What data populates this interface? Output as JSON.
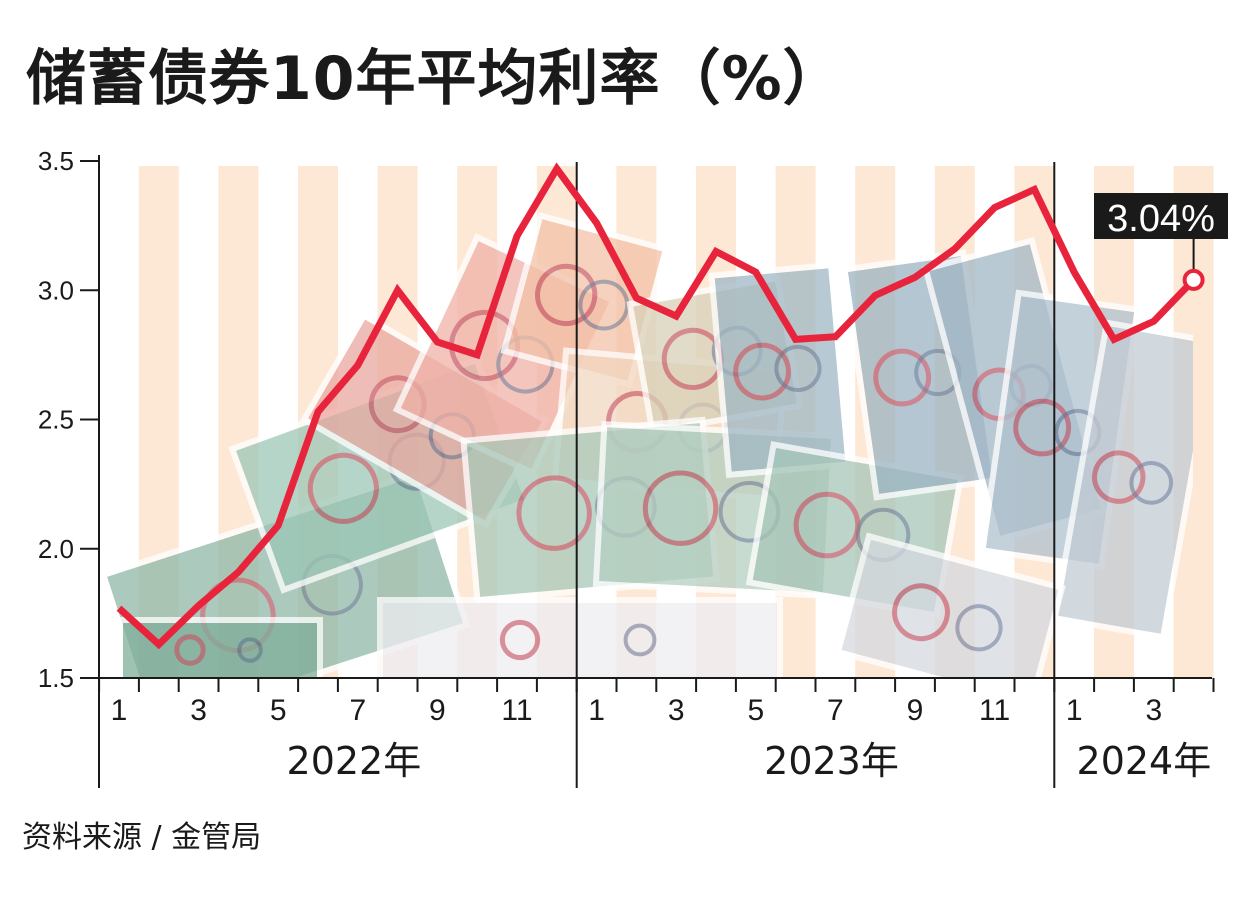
{
  "title": "储蓄债券10年平均利率（%）",
  "source": "资料来源 / 金管局",
  "colors": {
    "line": "#e8243c",
    "stripe": "#fde8d6",
    "axis": "#1a1a1a",
    "callout_bg": "#1a1a1a"
  },
  "chart_data": {
    "type": "line",
    "title": "储蓄债券10年平均利率（%）",
    "xlabel": "",
    "ylabel": "",
    "ylim": [
      1.5,
      3.5
    ],
    "yticks": [
      "3.5",
      "3.0",
      "2.5",
      "2.0",
      "1.5"
    ],
    "x": [
      "2022-01",
      "2022-02",
      "2022-03",
      "2022-04",
      "2022-05",
      "2022-06",
      "2022-07",
      "2022-08",
      "2022-09",
      "2022-10",
      "2022-11",
      "2022-12",
      "2023-01",
      "2023-02",
      "2023-03",
      "2023-04",
      "2023-05",
      "2023-06",
      "2023-07",
      "2023-08",
      "2023-09",
      "2023-10",
      "2023-11",
      "2023-12",
      "2024-01",
      "2024-02",
      "2024-03",
      "2024-04"
    ],
    "series": [
      {
        "name": "",
        "values": [
          1.77,
          1.63,
          1.78,
          1.91,
          2.09,
          2.53,
          2.71,
          3.0,
          2.8,
          2.75,
          3.21,
          3.47,
          3.26,
          2.97,
          2.9,
          3.15,
          3.07,
          2.81,
          2.82,
          2.98,
          3.05,
          3.16,
          3.32,
          3.39,
          3.07,
          2.81,
          2.88,
          3.04
        ]
      }
    ],
    "xtick_labels": [
      "1",
      "3",
      "5",
      "7",
      "9",
      "11",
      "1",
      "3",
      "5",
      "7",
      "9",
      "11",
      "1",
      "3"
    ],
    "year_labels": [
      "2022年",
      "2023年",
      "2024年"
    ],
    "annotation": {
      "text": "3.04%",
      "point": "2024-04"
    },
    "grid": false,
    "background": "alternating month stripes over banknote photo"
  }
}
